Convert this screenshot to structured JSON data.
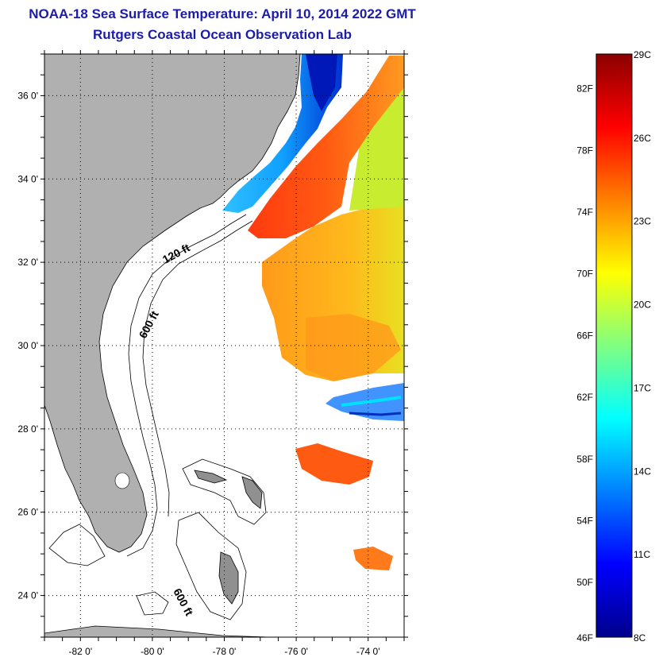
{
  "title": "NOAA-18 Sea Surface Temperature:  April 10, 2014 2022 GMT",
  "subtitle": "Rutgers Coastal Ocean Observation Lab",
  "map": {
    "lon_range": [
      -83,
      -73
    ],
    "lat_range": [
      23,
      37
    ],
    "lon_ticks": [
      {
        "value": -82,
        "label": "-82 0'"
      },
      {
        "value": -80,
        "label": "-80 0'"
      },
      {
        "value": -78,
        "label": "-78 0'"
      },
      {
        "value": -76,
        "label": "-76 0'"
      },
      {
        "value": -74,
        "label": "-74 0'"
      }
    ],
    "lat_ticks": [
      {
        "value": 24,
        "label": "24 0'"
      },
      {
        "value": 26,
        "label": "26 0'"
      },
      {
        "value": 28,
        "label": "28 0'"
      },
      {
        "value": 30,
        "label": "30 0'"
      },
      {
        "value": 32,
        "label": "32 0'"
      },
      {
        "value": 34,
        "label": "34 0'"
      },
      {
        "value": 36,
        "label": "36 0'"
      }
    ],
    "contour_labels": {
      "shelf_120": "120 ft",
      "shelf_600": "600 ft",
      "bahamas_600": "600 ft"
    },
    "colors": {
      "land": "#b0b0b0",
      "ocean_nodata": "#ffffff",
      "gulf_stream": "#ff5a12"
    }
  },
  "colorbar": {
    "temp_range_c": [
      8,
      29
    ],
    "stops": [
      "#00008b",
      "#0000ff",
      "#0080ff",
      "#00ffff",
      "#80ff80",
      "#ffff00",
      "#ff8000",
      "#ff0000",
      "#8b0000"
    ],
    "fahrenheit_labels": [
      {
        "value": 46,
        "label": "46F"
      },
      {
        "value": 50,
        "label": "50F"
      },
      {
        "value": 54,
        "label": "54F"
      },
      {
        "value": 58,
        "label": "58F"
      },
      {
        "value": 62,
        "label": "62F"
      },
      {
        "value": 66,
        "label": "66F"
      },
      {
        "value": 70,
        "label": "70F"
      },
      {
        "value": 74,
        "label": "74F"
      },
      {
        "value": 78,
        "label": "78F"
      },
      {
        "value": 82,
        "label": "82F"
      }
    ],
    "celsius_labels": [
      {
        "value": 8,
        "label": "8C"
      },
      {
        "value": 11,
        "label": "11C"
      },
      {
        "value": 14,
        "label": "14C"
      },
      {
        "value": 17,
        "label": "17C"
      },
      {
        "value": 20,
        "label": "20C"
      },
      {
        "value": 23,
        "label": "23C"
      },
      {
        "value": 26,
        "label": "26C"
      },
      {
        "value": 29,
        "label": "29C"
      }
    ]
  }
}
